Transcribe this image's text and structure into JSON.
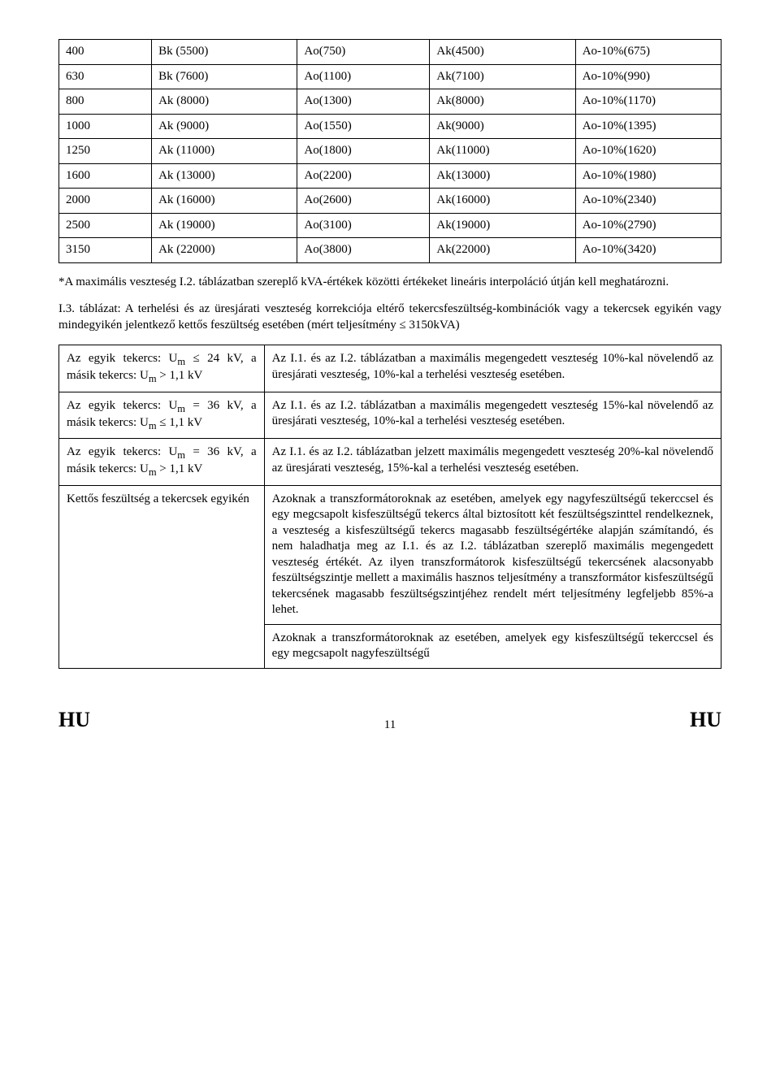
{
  "table1": {
    "rows": [
      [
        "400",
        "Bk (5500)",
        "Ao(750)",
        "Ak(4500)",
        "Ao-10%(675)"
      ],
      [
        "630",
        "Bk (7600)",
        "Ao(1100)",
        "Ak(7100)",
        "Ao-10%(990)"
      ],
      [
        "800",
        "Ak (8000)",
        "Ao(1300)",
        "Ak(8000)",
        "Ao-10%(1170)"
      ],
      [
        "1000",
        "Ak (9000)",
        "Ao(1550)",
        "Ak(9000)",
        "Ao-10%(1395)"
      ],
      [
        "1250",
        "Ak (11000)",
        "Ao(1800)",
        "Ak(11000)",
        "Ao-10%(1620)"
      ],
      [
        "1600",
        "Ak (13000)",
        "Ao(2200)",
        "Ak(13000)",
        "Ao-10%(1980)"
      ],
      [
        "2000",
        "Ak (16000)",
        "Ao(2600)",
        "Ak(16000)",
        "Ao-10%(2340)"
      ],
      [
        "2500",
        "Ak (19000)",
        "Ao(3100)",
        "Ak(19000)",
        "Ao-10%(2790)"
      ],
      [
        "3150",
        "Ak (22000)",
        "Ao(3800)",
        "Ak(22000)",
        "Ao-10%(3420)"
      ]
    ]
  },
  "para_after_t1": "*A maximális veszteség I.2. táblázatban szereplő kVA-értékek közötti értékeket lineáris interpoláció útján kell meghatározni.",
  "para_i3": "I.3. táblázat: A terhelési és az üresjárati veszteség korrekciója eltérő tekercsfeszültség-kombinációk vagy a tekercsek egyikén vagy mindegyikén jelentkező kettős feszültség esetében (mért teljesítmény ≤ 3150kVA)",
  "table2": {
    "rows": [
      {
        "left": "Az egyik tekercs: U<sub>m</sub> ≤ 24 kV, a másik tekercs: U<sub>m</sub> > 1,1 kV",
        "right": "Az I.1. és az I.2. táblázatban a maximális megengedett veszteség 10%-kal növelendő az üresjárati veszteség, 10%-kal a terhelési veszteség esetében."
      },
      {
        "left": "Az egyik tekercs: U<sub>m</sub> = 36 kV, a másik tekercs: U<sub>m</sub> ≤ 1,1 kV",
        "right": "Az I.1. és az I.2. táblázatban a maximális megengedett veszteség 15%-kal növelendő az üresjárati veszteség, 10%-kal a terhelési veszteség esetében."
      },
      {
        "left": "Az egyik tekercs: U<sub>m</sub> = 36 kV, a másik tekercs: U<sub>m</sub> > 1,1 kV",
        "right": "Az I.1. és az I.2. táblázatban jelzett maximális megengedett veszteség 20%-kal növelendő az üresjárati veszteség, 15%-kal a terhelési veszteség esetében."
      },
      {
        "left": "Kettős feszültség a tekercsek egyikén",
        "right": "Azoknak a transzformátoroknak az esetében, amelyek egy nagyfeszültségű tekerccsel és egy megcsapolt kisfeszültségű tekercs által biztosított két feszültségszinttel rendelkeznek, a veszteség a kisfeszültségű tekercs magasabb feszültségértéke alapján számítandó, és nem haladhatja meg az I.1. és az I.2. táblázatban szereplő maximális megengedett veszteség értékét. Az ilyen transzformátorok kisfeszültségű tekercsének alacsonyabb feszültségszintje mellett a maximális hasznos teljesítmény a transzformátor kisfeszültségű tekercsének magasabb feszültségszintjéhez rendelt mért teljesítmény legfeljebb 85%-a lehet."
      },
      {
        "left": "",
        "right": "Azoknak a transzformátoroknak az esetében, amelyek egy kisfeszültségű tekerccsel és egy megcsapolt nagyfeszültségű"
      }
    ]
  },
  "footer": {
    "left": "HU",
    "page": "11",
    "right": "HU"
  }
}
